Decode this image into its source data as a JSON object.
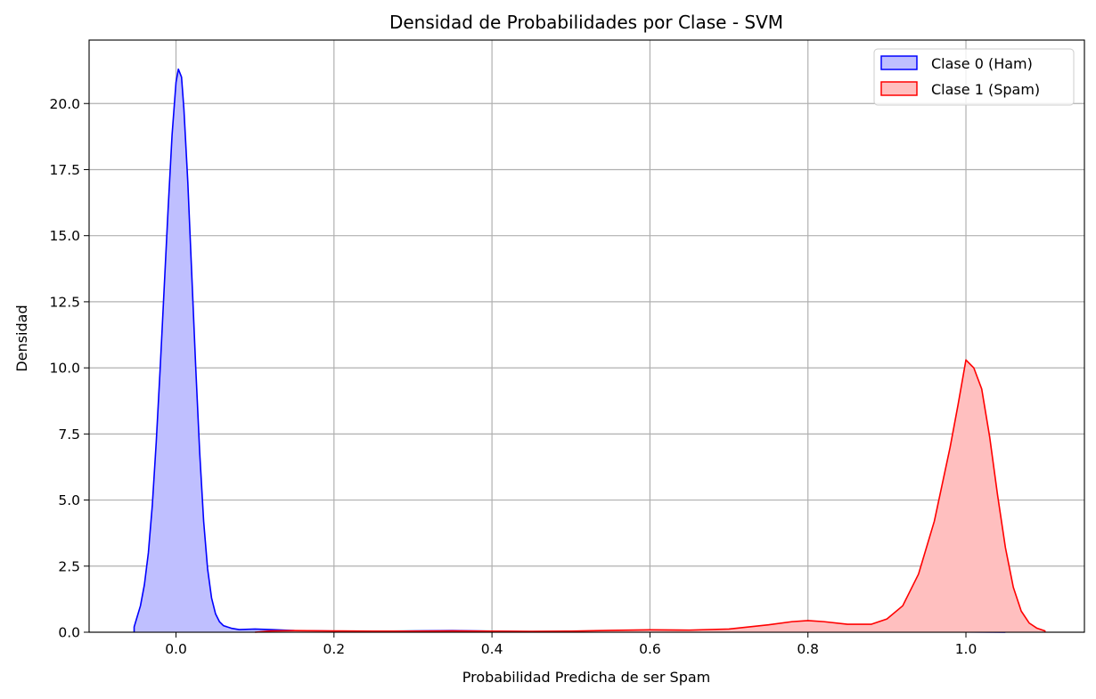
{
  "chart_data": {
    "type": "area",
    "title": "Densidad de Probabilidades por Clase - SVM",
    "xlabel": "Probabilidad Predicha de ser Spam",
    "ylabel": "Densidad",
    "xlim": [
      -0.11,
      1.15
    ],
    "ylim": [
      0,
      22.4
    ],
    "grid": true,
    "legend_position": "top-right",
    "x_ticks": [
      0.0,
      0.2,
      0.4,
      0.6,
      0.8,
      1.0
    ],
    "x_tick_labels": [
      "0.0",
      "0.2",
      "0.4",
      "0.6",
      "0.8",
      "1.0"
    ],
    "y_ticks": [
      0.0,
      2.5,
      5.0,
      7.5,
      10.0,
      12.5,
      15.0,
      17.5,
      20.0
    ],
    "y_tick_labels": [
      "0.0",
      "2.5",
      "5.0",
      "7.5",
      "10.0",
      "12.5",
      "15.0",
      "17.5",
      "20.0"
    ],
    "series": [
      {
        "name": "Clase 0 (Ham)",
        "line_color": "#0000ff",
        "fill_color": "#bfbfff",
        "points": [
          [
            -0.053,
            0.0
          ],
          [
            -0.053,
            0.2
          ],
          [
            -0.05,
            0.5
          ],
          [
            -0.045,
            1.0
          ],
          [
            -0.04,
            1.8
          ],
          [
            -0.035,
            3.0
          ],
          [
            -0.03,
            4.8
          ],
          [
            -0.025,
            7.2
          ],
          [
            -0.02,
            10.0
          ],
          [
            -0.015,
            13.0
          ],
          [
            -0.01,
            16.0
          ],
          [
            -0.005,
            18.8
          ],
          [
            0.0,
            20.8
          ],
          [
            0.003,
            21.3
          ],
          [
            0.007,
            21.0
          ],
          [
            0.01,
            19.8
          ],
          [
            0.015,
            17.0
          ],
          [
            0.02,
            13.5
          ],
          [
            0.025,
            10.0
          ],
          [
            0.03,
            6.8
          ],
          [
            0.035,
            4.2
          ],
          [
            0.04,
            2.4
          ],
          [
            0.045,
            1.3
          ],
          [
            0.05,
            0.7
          ],
          [
            0.055,
            0.4
          ],
          [
            0.06,
            0.25
          ],
          [
            0.07,
            0.15
          ],
          [
            0.08,
            0.1
          ],
          [
            0.1,
            0.12
          ],
          [
            0.12,
            0.1
          ],
          [
            0.15,
            0.06
          ],
          [
            0.2,
            0.04
          ],
          [
            0.25,
            0.03
          ],
          [
            0.3,
            0.05
          ],
          [
            0.35,
            0.06
          ],
          [
            0.4,
            0.04
          ],
          [
            0.45,
            0.02
          ],
          [
            0.5,
            0.01
          ],
          [
            0.6,
            0.01
          ],
          [
            0.7,
            0.01
          ],
          [
            0.8,
            0.01
          ],
          [
            0.9,
            0.02
          ],
          [
            0.93,
            0.03
          ],
          [
            0.96,
            0.02
          ],
          [
            1.0,
            0.01
          ],
          [
            1.05,
            0.0
          ]
        ]
      },
      {
        "name": "Clase 1 (Spam)",
        "line_color": "#ff0000",
        "fill_color": "#ffbfbf",
        "points": [
          [
            0.1,
            0.0
          ],
          [
            0.12,
            0.05
          ],
          [
            0.15,
            0.06
          ],
          [
            0.2,
            0.05
          ],
          [
            0.25,
            0.04
          ],
          [
            0.3,
            0.04
          ],
          [
            0.35,
            0.05
          ],
          [
            0.4,
            0.04
          ],
          [
            0.45,
            0.03
          ],
          [
            0.5,
            0.04
          ],
          [
            0.55,
            0.07
          ],
          [
            0.6,
            0.09
          ],
          [
            0.65,
            0.08
          ],
          [
            0.7,
            0.12
          ],
          [
            0.75,
            0.28
          ],
          [
            0.78,
            0.4
          ],
          [
            0.8,
            0.44
          ],
          [
            0.82,
            0.4
          ],
          [
            0.85,
            0.3
          ],
          [
            0.88,
            0.3
          ],
          [
            0.9,
            0.5
          ],
          [
            0.92,
            1.0
          ],
          [
            0.94,
            2.2
          ],
          [
            0.96,
            4.2
          ],
          [
            0.98,
            7.0
          ],
          [
            0.99,
            8.6
          ],
          [
            1.0,
            10.3
          ],
          [
            1.01,
            10.0
          ],
          [
            1.02,
            9.2
          ],
          [
            1.03,
            7.4
          ],
          [
            1.04,
            5.2
          ],
          [
            1.05,
            3.2
          ],
          [
            1.06,
            1.7
          ],
          [
            1.07,
            0.8
          ],
          [
            1.08,
            0.35
          ],
          [
            1.09,
            0.15
          ],
          [
            1.1,
            0.05
          ],
          [
            1.1,
            0.0
          ]
        ]
      }
    ]
  }
}
